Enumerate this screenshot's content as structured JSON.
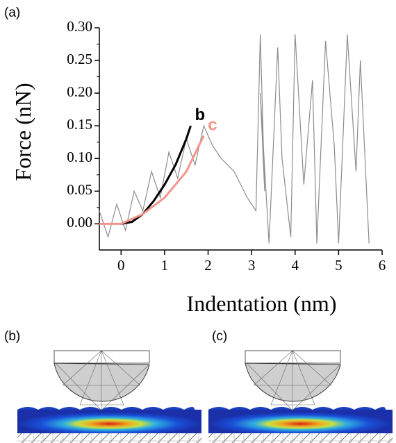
{
  "chart_data": {
    "type": "line",
    "label": "(a)",
    "x_label": "Indentation (nm)",
    "y_label": "Force (nN)",
    "xlim": [
      -0.5,
      6
    ],
    "ylim": [
      -0.04,
      0.3
    ],
    "xticks": [
      0,
      1,
      2,
      3,
      4,
      5,
      6
    ],
    "yticks": [
      {
        "value": 0,
        "label": "0.00"
      },
      {
        "value": 0.05,
        "label": "0.05"
      },
      {
        "value": 0.1,
        "label": "0.10"
      },
      {
        "value": 0.15,
        "label": "0.15"
      },
      {
        "value": 0.2,
        "label": "0.20"
      },
      {
        "value": 0.25,
        "label": "0.25"
      },
      {
        "value": 0.3,
        "label": "0.30"
      }
    ],
    "series": [
      {
        "color": "#8c8c8c",
        "x": [
          -0.5,
          -0.3,
          -0.1,
          0.1,
          0.3,
          0.5,
          0.7,
          0.9,
          1.1,
          1.3,
          1.5,
          1.7,
          1.9,
          2.1,
          2.3,
          2.6,
          2.9,
          3.1,
          3.2,
          3.3,
          3.2,
          3.4,
          3.6,
          3.7,
          3.9,
          4.0,
          4.2,
          4.4,
          4.5,
          4.7,
          4.9,
          5.0,
          5.2,
          5.4,
          5.5,
          5.7
        ],
        "values": [
          0.02,
          -0.02,
          0.03,
          -0.01,
          0.05,
          0.02,
          0.08,
          0.04,
          0.11,
          0.07,
          0.13,
          0.09,
          0.15,
          0.12,
          0.1,
          0.08,
          0.04,
          0.02,
          0.29,
          0.05,
          0.2,
          -0.03,
          0.27,
          0.1,
          -0.02,
          0.29,
          0.06,
          0.22,
          -0.03,
          0.28,
          0.12,
          -0.03,
          0.29,
          0.08,
          0.25,
          -0.03
        ]
      },
      {
        "name": "b",
        "color": "#000000",
        "x": [
          0,
          0.25,
          0.5,
          0.75,
          1,
          1.25,
          1.5,
          1.6
        ],
        "values": [
          0,
          0.003,
          0.015,
          0.035,
          0.06,
          0.09,
          0.13,
          0.15
        ]
      },
      {
        "name": "c",
        "color": "#f4948a",
        "x": [
          -0.5,
          0,
          0.5,
          1,
          1.5,
          1.9
        ],
        "values": [
          0,
          0,
          0.015,
          0.04,
          0.08,
          0.135
        ]
      }
    ]
  },
  "panels": [
    {
      "label": "(b)"
    },
    {
      "label": "(c)"
    }
  ]
}
